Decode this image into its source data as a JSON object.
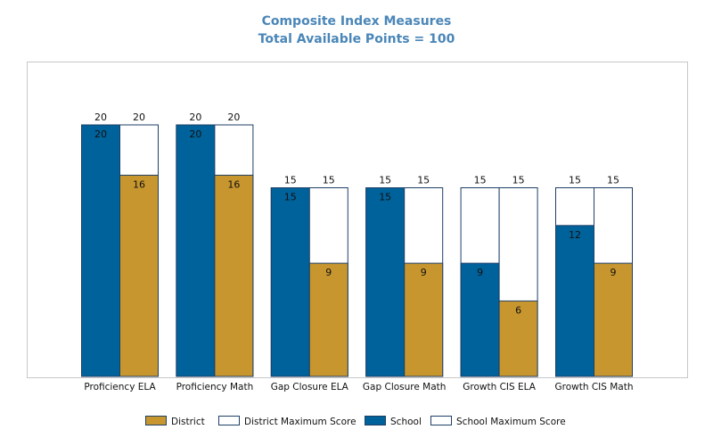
{
  "chart_data": {
    "type": "bar",
    "title": "Composite Index Measures",
    "subtitle": "Total Available Points = 100",
    "categories": [
      "Proficiency ELA",
      "Proficiency Math",
      "Gap Closure ELA",
      "Gap Closure Math",
      "Growth CIS ELA",
      "Growth CIS Math"
    ],
    "series": [
      {
        "name": "School",
        "values": [
          20,
          20,
          15,
          15,
          9,
          12
        ],
        "color": "#00629b"
      },
      {
        "name": "School Maximum Score",
        "values": [
          20,
          20,
          15,
          15,
          15,
          15
        ],
        "color": "#ffffff"
      },
      {
        "name": "District",
        "values": [
          16,
          16,
          9,
          9,
          6,
          9
        ],
        "color": "#c8962e"
      },
      {
        "name": "District Maximum Score",
        "values": [
          20,
          20,
          15,
          15,
          15,
          15
        ],
        "color": "#ffffff"
      }
    ],
    "ylim": [
      0,
      20
    ],
    "grid": false,
    "legend": {
      "placement": "bottom",
      "entries": [
        {
          "label": "District",
          "color": "#c8962e"
        },
        {
          "label": "District Maximum Score",
          "color": "#ffffff"
        },
        {
          "label": "School",
          "color": "#00629b"
        },
        {
          "label": "School Maximum Score",
          "color": "#ffffff"
        }
      ]
    },
    "colors": {
      "school": "#00629b",
      "district": "#c8962e",
      "outline": "#1f3f66",
      "title": "#4a86b8"
    }
  }
}
